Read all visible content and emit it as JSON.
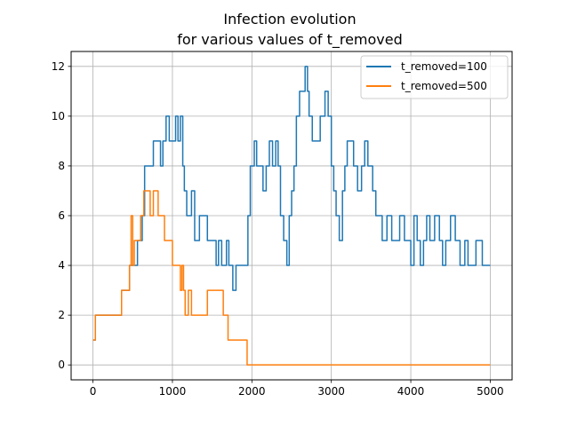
{
  "chart_data": {
    "type": "line",
    "title_lines": [
      "Infection evolution",
      "for various values of t_removed"
    ],
    "xlabel": "",
    "ylabel": "",
    "xlim": [
      -275,
      5275
    ],
    "ylim": [
      -0.6,
      12.6
    ],
    "xticks": [
      0,
      1000,
      2000,
      3000,
      4000,
      5000
    ],
    "yticks": [
      0,
      2,
      4,
      6,
      8,
      10,
      12
    ],
    "grid": true,
    "legend_position": "top-right",
    "step": "post",
    "series": [
      {
        "name": "t_removed=100",
        "color": "#1f77b4",
        "x": [
          0,
          30,
          250,
          360,
          460,
          500,
          560,
          620,
          650,
          700,
          760,
          830,
          850,
          880,
          920,
          960,
          980,
          1040,
          1070,
          1100,
          1130,
          1150,
          1180,
          1220,
          1240,
          1280,
          1340,
          1400,
          1440,
          1460,
          1500,
          1550,
          1580,
          1620,
          1680,
          1710,
          1760,
          1800,
          1840,
          1880,
          1950,
          1980,
          2030,
          2060,
          2100,
          2140,
          2180,
          2220,
          2260,
          2300,
          2330,
          2360,
          2400,
          2440,
          2470,
          2500,
          2530,
          2560,
          2600,
          2640,
          2670,
          2700,
          2720,
          2760,
          2820,
          2860,
          2920,
          2960,
          3000,
          3030,
          3060,
          3100,
          3140,
          3170,
          3200,
          3230,
          3280,
          3330,
          3380,
          3420,
          3460,
          3520,
          3560,
          3600,
          3640,
          3700,
          3760,
          3800,
          3860,
          3920,
          3960,
          4000,
          4040,
          4080,
          4120,
          4160,
          4200,
          4240,
          4300,
          4360,
          4400,
          4440,
          4500,
          4560,
          4620,
          4680,
          4720,
          4760,
          4820,
          4860,
          4900,
          4960,
          5000
        ],
        "values": [
          1,
          2,
          2,
          3,
          4,
          4,
          5,
          6,
          8,
          8,
          9,
          9,
          8,
          9,
          10,
          9,
          9,
          10,
          9,
          10,
          8,
          7,
          6,
          6,
          7,
          5,
          6,
          6,
          5,
          5,
          5,
          4,
          5,
          4,
          5,
          4,
          3,
          4,
          4,
          4,
          6,
          8,
          9,
          8,
          8,
          7,
          8,
          9,
          8,
          9,
          8,
          6,
          5,
          4,
          6,
          7,
          8,
          10,
          11,
          11,
          12,
          11,
          10,
          9,
          9,
          10,
          11,
          10,
          8,
          7,
          6,
          5,
          7,
          8,
          9,
          9,
          8,
          7,
          8,
          9,
          8,
          7,
          6,
          6,
          5,
          6,
          5,
          5,
          6,
          5,
          5,
          4,
          6,
          5,
          4,
          5,
          6,
          5,
          6,
          5,
          4,
          5,
          6,
          5,
          4,
          5,
          4,
          4,
          5,
          5,
          4,
          4,
          4
        ]
      },
      {
        "name": "t_removed=500",
        "color": "#ff7f0e",
        "x": [
          0,
          30,
          250,
          360,
          460,
          480,
          500,
          520,
          600,
          640,
          720,
          760,
          820,
          900,
          1000,
          1100,
          1120,
          1140,
          1160,
          1200,
          1240,
          1440,
          1640,
          1700,
          1940,
          5000
        ],
        "values": [
          1,
          2,
          2,
          3,
          4,
          6,
          4,
          5,
          6,
          7,
          6,
          7,
          6,
          5,
          4,
          3,
          4,
          3,
          2,
          3,
          2,
          3,
          2,
          1,
          0,
          0
        ]
      }
    ]
  }
}
